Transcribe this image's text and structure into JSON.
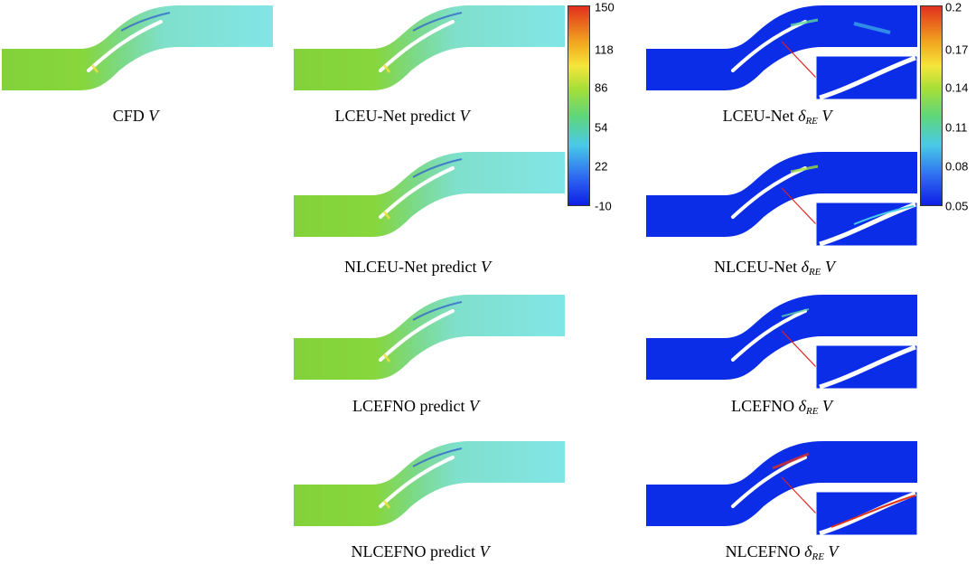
{
  "captions": {
    "cfd": {
      "prefix": "CFD ",
      "var": "V"
    },
    "lceunet_predict": {
      "prefix": "LCEU-Net predict ",
      "var": "V"
    },
    "nlceunet_predict": {
      "prefix": "NLCEU-Net predict ",
      "var": "V"
    },
    "lcefno_predict": {
      "prefix": "LCEFNO predict ",
      "var": "V"
    },
    "nlcefno_predict": {
      "prefix": "NLCEFNO predict ",
      "var": "V"
    },
    "lceunet_error": {
      "prefix": "LCEU-Net ",
      "delta": "δ",
      "sub": "RE",
      "var": "V"
    },
    "nlceunet_error": {
      "prefix": "NLCEU-Net ",
      "delta": "δ",
      "sub": "RE",
      "var": "V"
    },
    "lcefno_error": {
      "prefix": "LCEFNO ",
      "delta": "δ",
      "sub": "RE",
      "var": "V"
    },
    "nlcefno_error": {
      "prefix": "NLCEFNO ",
      "delta": "δ",
      "sub": "RE",
      "var": "V"
    }
  },
  "velocity_colorbar": {
    "ticks": [
      "150",
      "118",
      "86",
      "54",
      "22",
      "-10"
    ]
  },
  "error_colorbar": {
    "ticks": [
      "0.2",
      "0.17",
      "0.14",
      "0.11",
      "0.08",
      "0.05"
    ]
  },
  "colors": {
    "inlet_green": "#7fd03a",
    "outlet_cyan": "#7fe3e6",
    "error_blue": "#0a2ee6",
    "arrow_red": "#e02020"
  }
}
